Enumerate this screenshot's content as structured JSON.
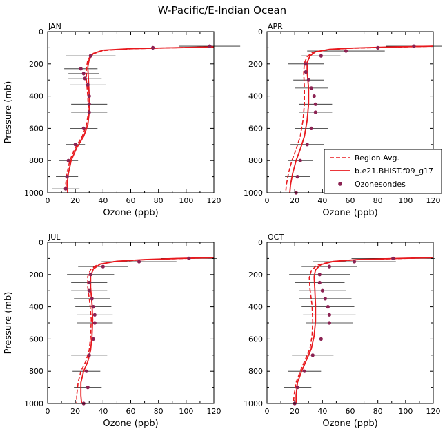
{
  "figure_title": "W-Pacific/E-Indian Ocean",
  "colors": {
    "model": "#e8191e",
    "region": "#e8191e",
    "sonde": "#8b2252",
    "errorbar": "#222222",
    "axis": "#000000"
  },
  "legend": {
    "items": [
      {
        "label": "Region Avg.",
        "style": "dashed"
      },
      {
        "label": "b.e21.BHIST.f09_g17",
        "style": "solid"
      },
      {
        "label": "Ozonesondes",
        "style": "marker"
      }
    ]
  },
  "chart_data": [
    {
      "type": "line",
      "panel": "JAN",
      "xlabel": "Ozone (ppb)",
      "ylabel": "Pressure (mb)",
      "xlim": [
        0,
        120
      ],
      "ylim": [
        1000,
        0
      ],
      "xticks": [
        0,
        20,
        40,
        60,
        80,
        100,
        120
      ],
      "yticks": [
        0,
        200,
        400,
        600,
        800,
        1000
      ],
      "model": {
        "name": "b.e21.BHIST.f09_g17",
        "x": [
          120,
          90,
          60,
          40,
          33,
          30,
          29,
          29.5,
          30,
          30,
          29,
          26,
          21,
          17,
          15,
          14,
          14.5
        ],
        "y": [
          95,
          100,
          105,
          115,
          135,
          170,
          220,
          300,
          400,
          500,
          580,
          650,
          720,
          800,
          880,
          950,
          1000
        ]
      },
      "region": {
        "name": "Region Avg.",
        "x": [
          120,
          90,
          60,
          40,
          32,
          29,
          28,
          28,
          29,
          29.5,
          28,
          25,
          20,
          16,
          14,
          13,
          13
        ],
        "y": [
          95,
          100,
          106,
          117,
          140,
          175,
          225,
          300,
          400,
          500,
          580,
          650,
          720,
          800,
          880,
          950,
          1000
        ]
      },
      "sondes": [
        {
          "p": 90,
          "o3": 117,
          "err": 22
        },
        {
          "p": 100,
          "o3": 76,
          "err": 45
        },
        {
          "p": 150,
          "o3": 31,
          "err": 18
        },
        {
          "p": 230,
          "o3": 24,
          "err": 12
        },
        {
          "p": 260,
          "o3": 26,
          "err": 11
        },
        {
          "p": 290,
          "o3": 27,
          "err": 12
        },
        {
          "p": 330,
          "o3": 29,
          "err": 13
        },
        {
          "p": 400,
          "o3": 30,
          "err": 12
        },
        {
          "p": 450,
          "o3": 30,
          "err": 13
        },
        {
          "p": 500,
          "o3": 30,
          "err": 13
        },
        {
          "p": 600,
          "o3": 26,
          "err": 10
        },
        {
          "p": 700,
          "o3": 20,
          "err": 7
        },
        {
          "p": 800,
          "o3": 15,
          "err": 7
        },
        {
          "p": 900,
          "o3": 14,
          "err": 8
        },
        {
          "p": 975,
          "o3": 13,
          "err": 10
        }
      ]
    },
    {
      "type": "line",
      "panel": "APR",
      "xlabel": "Ozone (ppb)",
      "ylabel": "Pressure (mb)",
      "xlim": [
        0,
        120
      ],
      "ylim": [
        1000,
        0
      ],
      "xticks": [
        0,
        20,
        40,
        60,
        80,
        100,
        120
      ],
      "yticks": [
        0,
        200,
        400,
        600,
        800,
        1000
      ],
      "model": {
        "name": "b.e21.BHIST.f09_g17",
        "x": [
          120,
          90,
          60,
          45,
          35,
          31,
          29,
          29,
          30,
          30,
          29,
          27,
          24,
          21,
          18.5,
          17,
          16.5
        ],
        "y": [
          90,
          95,
          102,
          110,
          125,
          150,
          190,
          250,
          350,
          450,
          550,
          650,
          730,
          800,
          880,
          950,
          1000
        ]
      },
      "region": {
        "name": "Region Avg.",
        "x": [
          120,
          90,
          60,
          44,
          33,
          29,
          27,
          26.5,
          27,
          27,
          26,
          24,
          21,
          18,
          15.5,
          14,
          13.5
        ],
        "y": [
          90,
          96,
          103,
          112,
          128,
          155,
          195,
          255,
          350,
          450,
          550,
          650,
          730,
          800,
          880,
          950,
          1000
        ]
      },
      "sondes": [
        {
          "p": 90,
          "o3": 106,
          "err": 20
        },
        {
          "p": 100,
          "o3": 80,
          "err": 25
        },
        {
          "p": 120,
          "o3": 57,
          "err": 28
        },
        {
          "p": 150,
          "o3": 39,
          "err": 14
        },
        {
          "p": 200,
          "o3": 28,
          "err": 13
        },
        {
          "p": 250,
          "o3": 28,
          "err": 11
        },
        {
          "p": 300,
          "o3": 30,
          "err": 11
        },
        {
          "p": 350,
          "o3": 32,
          "err": 12
        },
        {
          "p": 400,
          "o3": 34,
          "err": 12
        },
        {
          "p": 450,
          "o3": 35,
          "err": 12
        },
        {
          "p": 500,
          "o3": 35,
          "err": 12
        },
        {
          "p": 600,
          "o3": 32,
          "err": 12
        },
        {
          "p": 700,
          "o3": 29,
          "err": 12
        },
        {
          "p": 800,
          "o3": 24,
          "err": 9
        },
        {
          "p": 900,
          "o3": 22,
          "err": 9
        },
        {
          "p": 1000,
          "o3": 21,
          "err": 9
        }
      ]
    },
    {
      "type": "line",
      "panel": "JUL",
      "xlabel": "Ozone (ppb)",
      "ylabel": "Pressure (mb)",
      "xlim": [
        0,
        120
      ],
      "ylim": [
        1000,
        0
      ],
      "xticks": [
        0,
        20,
        40,
        60,
        80,
        100,
        120
      ],
      "yticks": [
        0,
        200,
        400,
        600,
        800,
        1000
      ],
      "model": {
        "name": "b.e21.BHIST.f09_g17",
        "x": [
          120,
          95,
          70,
          50,
          38,
          33,
          31,
          31,
          32,
          32.5,
          32,
          31,
          29,
          26,
          24,
          24,
          24.5
        ],
        "y": [
          95,
          100,
          107,
          117,
          135,
          165,
          210,
          280,
          380,
          480,
          580,
          670,
          740,
          800,
          870,
          950,
          1000
        ]
      },
      "region": {
        "name": "Region Avg.",
        "x": [
          120,
          95,
          70,
          48,
          36,
          31,
          29,
          29,
          30.5,
          31.5,
          31,
          30,
          27.5,
          24,
          22,
          21,
          21
        ],
        "y": [
          95,
          101,
          108,
          119,
          138,
          168,
          212,
          280,
          380,
          480,
          580,
          670,
          740,
          800,
          870,
          950,
          1000
        ]
      },
      "sondes": [
        {
          "p": 100,
          "o3": 102,
          "err": 20
        },
        {
          "p": 120,
          "o3": 66,
          "err": 27
        },
        {
          "p": 150,
          "o3": 40,
          "err": 18
        },
        {
          "p": 200,
          "o3": 31,
          "err": 17
        },
        {
          "p": 250,
          "o3": 30,
          "err": 13
        },
        {
          "p": 300,
          "o3": 30,
          "err": 13
        },
        {
          "p": 350,
          "o3": 32,
          "err": 13
        },
        {
          "p": 400,
          "o3": 33,
          "err": 13
        },
        {
          "p": 450,
          "o3": 34,
          "err": 13
        },
        {
          "p": 500,
          "o3": 34,
          "err": 13
        },
        {
          "p": 600,
          "o3": 33,
          "err": 13
        },
        {
          "p": 700,
          "o3": 30,
          "err": 13
        },
        {
          "p": 800,
          "o3": 28,
          "err": 10
        },
        {
          "p": 900,
          "o3": 29,
          "err": 10
        },
        {
          "p": 1000,
          "o3": 26,
          "err": 12
        }
      ]
    },
    {
      "type": "line",
      "panel": "OCT",
      "xlabel": "Ozone (ppb)",
      "ylabel": "Pressure (mb)",
      "xlim": [
        0,
        120
      ],
      "ylim": [
        1000,
        0
      ],
      "xticks": [
        0,
        20,
        40,
        60,
        80,
        100,
        120
      ],
      "yticks": [
        0,
        200,
        400,
        600,
        800,
        1000
      ],
      "model": {
        "name": "b.e21.BHIST.f09_g17",
        "x": [
          120,
          95,
          65,
          48,
          39,
          35,
          34,
          34.5,
          35,
          35,
          34,
          32,
          28,
          25,
          22,
          21,
          21
        ],
        "y": [
          95,
          100,
          107,
          118,
          138,
          170,
          215,
          290,
          390,
          490,
          580,
          660,
          740,
          800,
          870,
          950,
          1000
        ]
      },
      "region": {
        "name": "Region Avg.",
        "x": [
          120,
          95,
          65,
          46,
          36,
          32,
          30.5,
          31,
          32.5,
          33,
          32.5,
          31,
          27,
          24,
          21,
          19.5,
          19
        ],
        "y": [
          95,
          101,
          108,
          120,
          142,
          175,
          220,
          290,
          390,
          490,
          580,
          660,
          740,
          800,
          870,
          950,
          1000
        ]
      },
      "sondes": [
        {
          "p": 100,
          "o3": 91,
          "err": 30
        },
        {
          "p": 120,
          "o3": 63,
          "err": 30
        },
        {
          "p": 150,
          "o3": 45,
          "err": 20
        },
        {
          "p": 200,
          "o3": 38,
          "err": 22
        },
        {
          "p": 250,
          "o3": 38,
          "err": 18
        },
        {
          "p": 300,
          "o3": 40,
          "err": 17
        },
        {
          "p": 350,
          "o3": 42,
          "err": 19
        },
        {
          "p": 400,
          "o3": 44,
          "err": 19
        },
        {
          "p": 450,
          "o3": 45,
          "err": 19
        },
        {
          "p": 500,
          "o3": 45,
          "err": 17
        },
        {
          "p": 600,
          "o3": 39,
          "err": 18
        },
        {
          "p": 700,
          "o3": 33,
          "err": 15
        },
        {
          "p": 800,
          "o3": 27,
          "err": 12
        },
        {
          "p": 900,
          "o3": 22,
          "err": 10
        },
        {
          "p": 1000,
          "o3": 20,
          "err": 14
        }
      ]
    }
  ]
}
